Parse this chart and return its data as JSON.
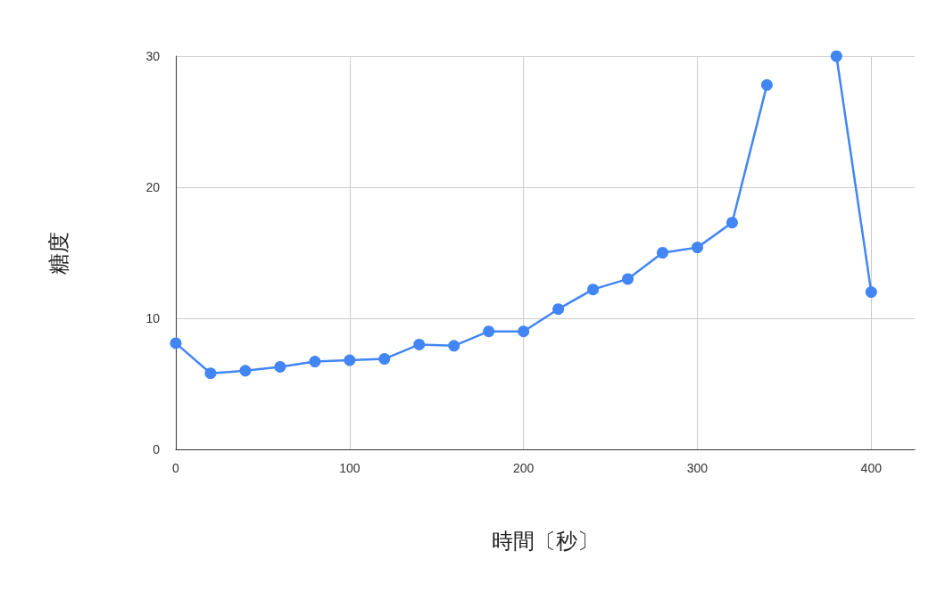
{
  "chart_data": {
    "type": "line",
    "xlabel": "時間〔秒〕",
    "ylabel": "糖度",
    "x": [
      0,
      20,
      40,
      60,
      80,
      100,
      120,
      140,
      160,
      180,
      200,
      220,
      240,
      260,
      280,
      300,
      320,
      340,
      360,
      380,
      400
    ],
    "series": [
      {
        "color": "#4285f4",
        "values": [
          8.1,
          5.8,
          6.0,
          6.3,
          6.7,
          6.8,
          6.9,
          8.0,
          7.9,
          9.0,
          9.0,
          10.7,
          12.2,
          13.0,
          15.0,
          15.4,
          17.3,
          27.8,
          null,
          30,
          12.0
        ]
      }
    ],
    "xlim": [
      0,
      425
    ],
    "xticks": [
      0,
      100,
      200,
      300,
      400
    ],
    "ylim": [
      0,
      30
    ],
    "yticks": [
      0,
      10,
      20,
      30
    ],
    "grid": true,
    "marker": "circle",
    "line_style": "solid"
  }
}
